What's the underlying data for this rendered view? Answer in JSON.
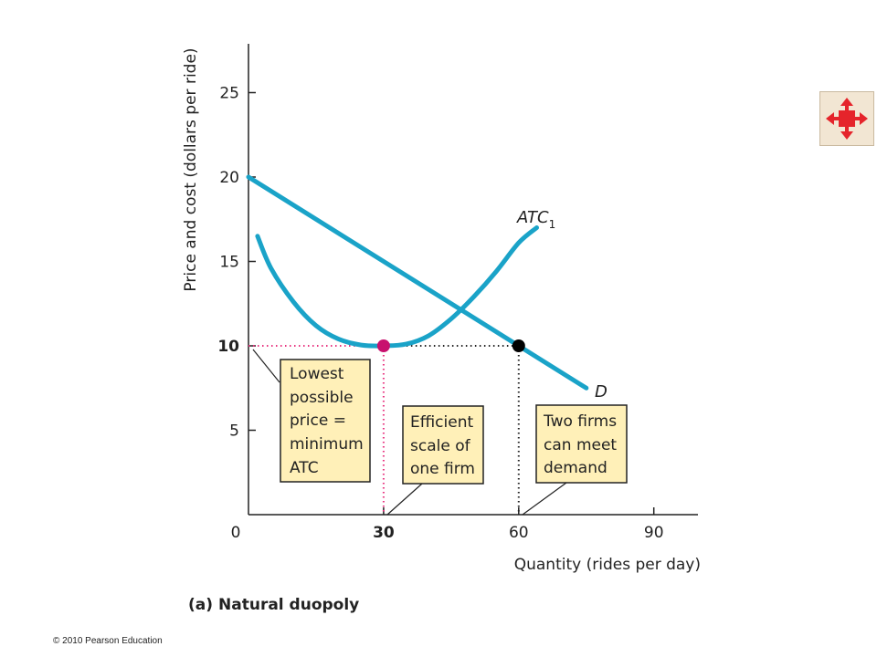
{
  "chart_data": {
    "type": "line",
    "title": "",
    "caption_prefix": "(a)",
    "caption_text": "Natural duopoly",
    "xlabel": "Quantity (rides per day)",
    "ylabel": "Price and cost (dollars per ride)",
    "xlim": [
      0,
      100
    ],
    "ylim": [
      0,
      28
    ],
    "x_ticks": [
      "0",
      "30",
      "60",
      "90"
    ],
    "x_tick_values": [
      0,
      30,
      60,
      90
    ],
    "y_ticks": [
      "5",
      "10",
      "15",
      "20",
      "25"
    ],
    "y_tick_values": [
      5,
      10,
      15,
      20,
      25
    ],
    "highlight_x_tick": "30",
    "highlight_y_tick": "10",
    "series": [
      {
        "name": "D",
        "label_main": "D",
        "label_sub": "",
        "x": [
          0,
          75
        ],
        "y": [
          20,
          7.5
        ]
      },
      {
        "name": "ATC1",
        "label_main": "ATC",
        "label_sub": "1",
        "x": [
          2,
          5,
          10,
          15,
          20,
          25,
          30,
          35,
          40,
          45,
          50,
          55,
          60,
          64
        ],
        "y": [
          16.5,
          14.6,
          12.6,
          11.2,
          10.4,
          10.05,
          10,
          10.1,
          10.6,
          11.6,
          12.9,
          14.4,
          16.1,
          17.0
        ]
      }
    ],
    "points": [
      {
        "name": "min-ATC",
        "x": 30,
        "y": 10,
        "color": "#c8116e"
      },
      {
        "name": "demand-at-60",
        "x": 60,
        "y": 10,
        "color": "#000000"
      }
    ],
    "annotations": [
      {
        "name": "lowest-price",
        "lines": [
          "Lowest",
          "possible",
          "price =",
          "minimum",
          "ATC"
        ]
      },
      {
        "name": "efficient-scale",
        "lines": [
          "Efficient",
          "scale of",
          "one firm"
        ]
      },
      {
        "name": "two-firms",
        "lines": [
          "Two firms",
          "can meet",
          "demand"
        ]
      }
    ],
    "colors": {
      "curve": "#1aa3c8",
      "highlight": "#e8337f",
      "box_fill": "#fff0b8"
    }
  },
  "footer": {
    "copyright": "© 2010 Pearson Education"
  },
  "nav": {
    "icon": "fullscreen-arrows-icon"
  }
}
